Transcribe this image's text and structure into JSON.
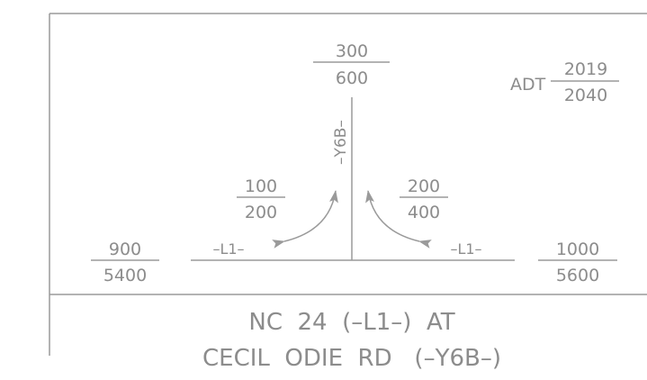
{
  "top_leg": {
    "top": "300",
    "bottom": "600"
  },
  "adt": {
    "label": "ADT",
    "top": "2019",
    "bottom": "2040"
  },
  "y6b_label": "–Y6B–",
  "left_turn": {
    "top": "100",
    "bottom": "200"
  },
  "right_turn": {
    "top": "200",
    "bottom": "400"
  },
  "left_leg": {
    "top": "900",
    "bottom": "5400"
  },
  "right_leg": {
    "top": "1000",
    "bottom": "5600"
  },
  "l1_label_left": "–L1–",
  "l1_label_right": "–L1–",
  "title": {
    "line1": "NC  24  (–L1–)  AT",
    "line2": "CECIL  ODIE  RD   (–Y6B–)"
  },
  "colors": {
    "ink": "#8c8c8c",
    "line": "#9a9a9a"
  }
}
